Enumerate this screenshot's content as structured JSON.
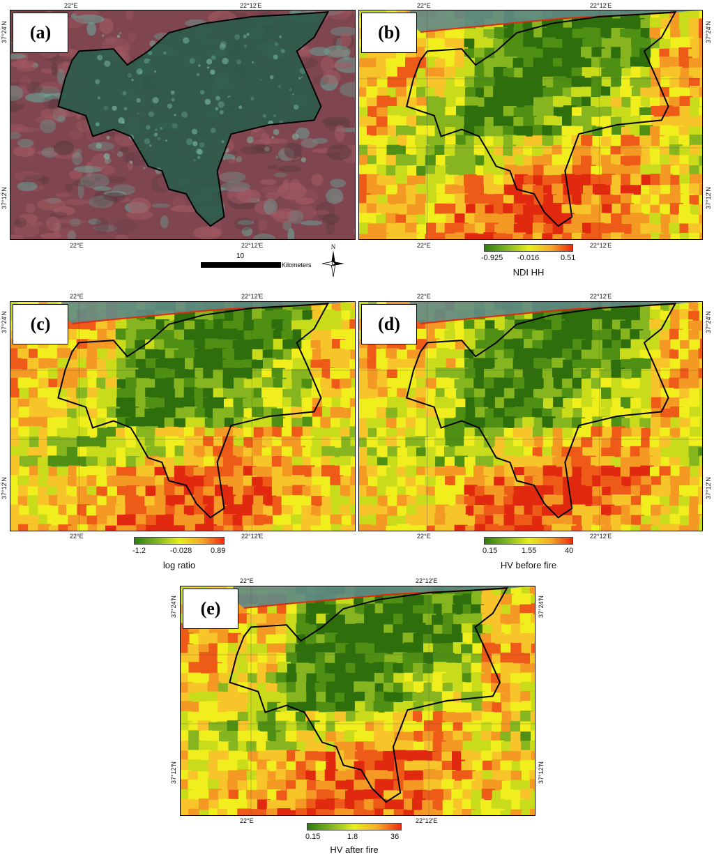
{
  "figure": {
    "panels": [
      {
        "id": "a",
        "label": "(a)",
        "type": "optical",
        "ticks": {
          "top_left": "22°E",
          "top_right": "22°12'E",
          "bottom_left": "22°E",
          "bottom_right": "22°12'E",
          "left_top": "37°24'N",
          "left_bottom": "37°12'N",
          "right_top": "",
          "right_bottom": ""
        }
      },
      {
        "id": "b",
        "label": "(b)",
        "type": "classified",
        "ticks": {
          "top_left": "22°E",
          "top_right": "22°12'E",
          "bottom_left": "22°E",
          "bottom_right": "22°12'E",
          "left_top": "",
          "left_bottom": "",
          "right_top": "37°24'N",
          "right_bottom": "37°12'N"
        }
      },
      {
        "id": "c",
        "label": "(c)",
        "type": "classified",
        "ticks": {
          "top_left": "22°E",
          "top_right": "22°12'E",
          "bottom_left": "22°E",
          "bottom_right": "22°12'E",
          "left_top": "37°24'N",
          "left_bottom": "37°12'N",
          "right_top": "",
          "right_bottom": ""
        }
      },
      {
        "id": "d",
        "label": "(d)",
        "type": "classified",
        "ticks": {
          "top_left": "22°E",
          "top_right": "22°12'E",
          "bottom_left": "22°E",
          "bottom_right": "22°12'E",
          "left_top": "",
          "left_bottom": "",
          "right_top": "37°24'N",
          "right_bottom": "37°12'N"
        }
      },
      {
        "id": "e",
        "label": "(e)",
        "type": "classified",
        "ticks": {
          "top_left": "22°E",
          "top_right": "22°12'E",
          "bottom_left": "22°E",
          "bottom_right": "22°12'E",
          "left_top": "37°24'N",
          "left_bottom": "37°12'N",
          "right_top": "37°24'N",
          "right_bottom": "37°12'N"
        }
      }
    ],
    "legends": [
      {
        "panel": "b",
        "title": "NDI HH",
        "min": "-0.925",
        "mid": "-0.016",
        "max": "0.51"
      },
      {
        "panel": "c",
        "title": "log ratio",
        "min": "-1.2",
        "mid": "-0.028",
        "max": "0.89"
      },
      {
        "panel": "d",
        "title": "HV before fire",
        "min": "0.15",
        "mid": "1.55",
        "max": "40"
      },
      {
        "panel": "e",
        "title": "HV after fire",
        "min": "0.15",
        "mid": "1.8",
        "max": "36"
      }
    ],
    "scalebar": {
      "value": "10",
      "unit": "Kilometers"
    },
    "north_arrow": {
      "label": "N",
      "icon": "compass-rose-icon"
    },
    "colors": {
      "low": "#2e7d0f",
      "mid": "#e6ef1a",
      "high": "#ef2a10",
      "optical_bg": "#8a4a52",
      "optical_veg": "#2f5a4c"
    }
  }
}
